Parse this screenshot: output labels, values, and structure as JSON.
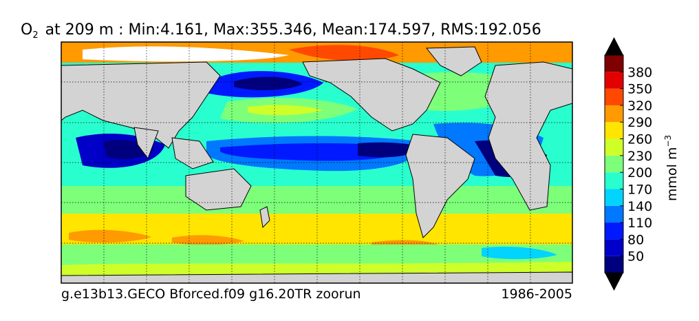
{
  "title": {
    "var_main": "O",
    "var_sub": "2",
    "rest": "at 209 m : Min:4.161, Max:355.346, Mean:174.597, RMS:192.056"
  },
  "footer": {
    "left": "g.e13b13.GECO Bforced.f09 g16.20TR zoorun",
    "right": "1986-2005"
  },
  "colorbar": {
    "label_main": "mmol m",
    "label_sup": "−3",
    "ticks": [
      "50",
      "80",
      "110",
      "140",
      "170",
      "200",
      "230",
      "260",
      "290",
      "320",
      "350",
      "380"
    ],
    "colors": [
      "#00007f",
      "#0000c8",
      "#0019ff",
      "#0078ff",
      "#00d4ff",
      "#29ffce",
      "#7dff7a",
      "#ceff29",
      "#ffe500",
      "#ff9a00",
      "#ff4900",
      "#e30000",
      "#7f0000"
    ],
    "extend": "both"
  },
  "map": {
    "projection": "equirectangular",
    "land_color": "#d3d3d3",
    "missing_color": "#ffffff",
    "graticule": "dotted"
  }
}
